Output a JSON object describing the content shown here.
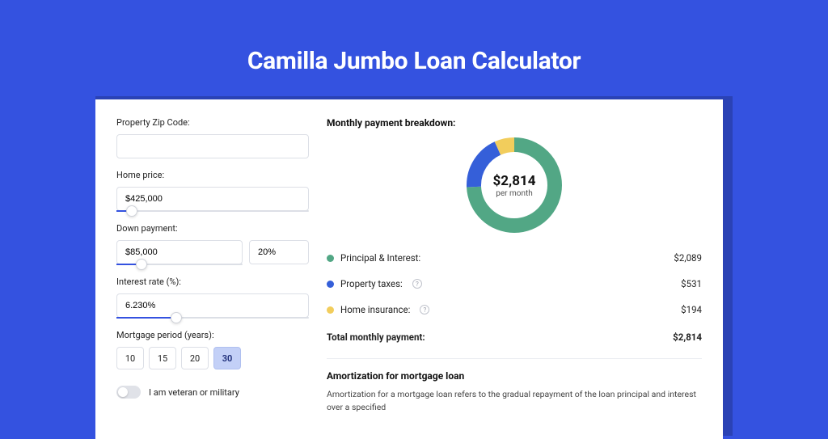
{
  "page": {
    "title": "Camilla Jumbo Loan Calculator",
    "background_color": "#3452e0",
    "shadow_color": "#2a42b5",
    "card_background": "#ffffff",
    "title_color": "#ffffff",
    "title_fontsize": 30
  },
  "form": {
    "zip_label": "Property Zip Code:",
    "zip_value": "",
    "home_price_label": "Home price:",
    "home_price_value": "$425,000",
    "home_price_slider_pct": 8,
    "down_payment_label": "Down payment:",
    "down_payment_value": "$85,000",
    "down_payment_pct_value": "20%",
    "down_payment_slider_pct": 20,
    "interest_rate_label": "Interest rate (%):",
    "interest_rate_value": "6.230%",
    "interest_rate_slider_pct": 31,
    "mortgage_period_label": "Mortgage period (years):",
    "mortgage_period_options": [
      "10",
      "15",
      "20",
      "30"
    ],
    "mortgage_period_selected": "30",
    "veteran_label": "I am veteran or military",
    "veteran_value": false,
    "input_border_color": "#dcdfe6",
    "slider_fill_color": "#3452e0",
    "slider_rail_color": "#dcdfe6",
    "segment_selected_bg": "#c3d0f7"
  },
  "breakdown": {
    "title": "Monthly payment breakdown:",
    "donut": {
      "center_amount": "$2,814",
      "center_sub": "per month",
      "radius": 50,
      "stroke_width": 18,
      "slices": [
        {
          "name": "principal_interest",
          "label": "Principal & Interest:",
          "value": "$2,089",
          "pct": 74.2,
          "color": "#52a785"
        },
        {
          "name": "property_taxes",
          "label": "Property taxes:",
          "value": "$531",
          "pct": 18.9,
          "color": "#355fd9",
          "has_info": true
        },
        {
          "name": "home_insurance",
          "label": "Home insurance:",
          "value": "$194",
          "pct": 6.9,
          "color": "#f2cd5c",
          "has_info": true
        }
      ],
      "total_label": "Total monthly payment:",
      "total_value": "$2,814"
    }
  },
  "amortization": {
    "title": "Amortization for mortgage loan",
    "text": "Amortization for a mortgage loan refers to the gradual repayment of the loan principal and interest over a specified"
  }
}
